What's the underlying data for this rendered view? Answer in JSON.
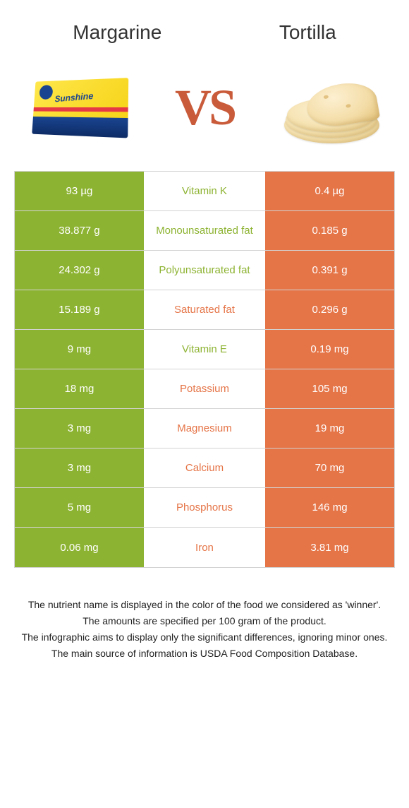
{
  "colors": {
    "left": "#8db332",
    "right": "#e57447",
    "neutral_bg": "#ffffff",
    "neutral_text": "#666666",
    "vs": "#c95b3a"
  },
  "header": {
    "left_title": "Margarine",
    "right_title": "Tortilla",
    "vs_label": "VS"
  },
  "rows": [
    {
      "nutrient": "Vitamin K",
      "left": "93 µg",
      "right": "0.4 µg",
      "winner": "left"
    },
    {
      "nutrient": "Monounsaturated fat",
      "left": "38.877 g",
      "right": "0.185 g",
      "winner": "left"
    },
    {
      "nutrient": "Polyunsaturated fat",
      "left": "24.302 g",
      "right": "0.391 g",
      "winner": "left"
    },
    {
      "nutrient": "Saturated fat",
      "left": "15.189 g",
      "right": "0.296 g",
      "winner": "right"
    },
    {
      "nutrient": "Vitamin E",
      "left": "9 mg",
      "right": "0.19 mg",
      "winner": "left"
    },
    {
      "nutrient": "Potassium",
      "left": "18 mg",
      "right": "105 mg",
      "winner": "right"
    },
    {
      "nutrient": "Magnesium",
      "left": "3 mg",
      "right": "19 mg",
      "winner": "right"
    },
    {
      "nutrient": "Calcium",
      "left": "3 mg",
      "right": "70 mg",
      "winner": "right"
    },
    {
      "nutrient": "Phosphorus",
      "left": "5 mg",
      "right": "146 mg",
      "winner": "right"
    },
    {
      "nutrient": "Iron",
      "left": "0.06 mg",
      "right": "3.81 mg",
      "winner": "right"
    }
  ],
  "notes": [
    "The nutrient name is displayed in the color of the food we considered as 'winner'.",
    "The amounts are specified per 100 gram of the product.",
    "The infographic aims to display only the significant differences, ignoring minor ones.",
    "The main source of information is USDA Food Composition Database."
  ]
}
